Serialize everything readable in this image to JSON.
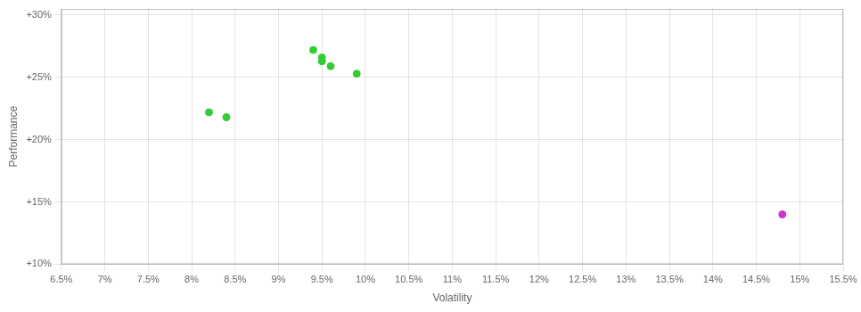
{
  "chart_data": {
    "type": "scatter",
    "xlabel": "Volatility",
    "ylabel": "Performance",
    "xlim": [
      0.065,
      0.155
    ],
    "ylim": [
      0.1,
      0.305
    ],
    "xticks": [
      {
        "value": 0.065,
        "label": "6.5%"
      },
      {
        "value": 0.07,
        "label": "7%"
      },
      {
        "value": 0.075,
        "label": "7.5%"
      },
      {
        "value": 0.08,
        "label": "8%"
      },
      {
        "value": 0.085,
        "label": "8.5%"
      },
      {
        "value": 0.09,
        "label": "9%"
      },
      {
        "value": 0.095,
        "label": "9.5%"
      },
      {
        "value": 0.1,
        "label": "10%"
      },
      {
        "value": 0.105,
        "label": "10.5%"
      },
      {
        "value": 0.11,
        "label": "11%"
      },
      {
        "value": 0.115,
        "label": "11.5%"
      },
      {
        "value": 0.12,
        "label": "12%"
      },
      {
        "value": 0.125,
        "label": "12.5%"
      },
      {
        "value": 0.13,
        "label": "13%"
      },
      {
        "value": 0.135,
        "label": "13.5%"
      },
      {
        "value": 0.14,
        "label": "14%"
      },
      {
        "value": 0.145,
        "label": "14.5%"
      },
      {
        "value": 0.15,
        "label": "15%"
      },
      {
        "value": 0.155,
        "label": "15.5%"
      }
    ],
    "yticks": [
      {
        "value": 0.1,
        "label": "+10%"
      },
      {
        "value": 0.15,
        "label": "+15%"
      },
      {
        "value": 0.2,
        "label": "+20%"
      },
      {
        "value": 0.25,
        "label": "+25%"
      },
      {
        "value": 0.3,
        "label": "+30%"
      }
    ],
    "grid": true,
    "series": [
      {
        "color": "#33cc33",
        "x": [
          0.082,
          0.084,
          0.094,
          0.095,
          0.095,
          0.096,
          0.099
        ],
        "values": [
          0.222,
          0.218,
          0.272,
          0.266,
          0.263,
          0.259,
          0.253
        ]
      },
      {
        "color": "#cc33cc",
        "x": [
          0.148
        ],
        "values": [
          0.14
        ]
      }
    ]
  }
}
